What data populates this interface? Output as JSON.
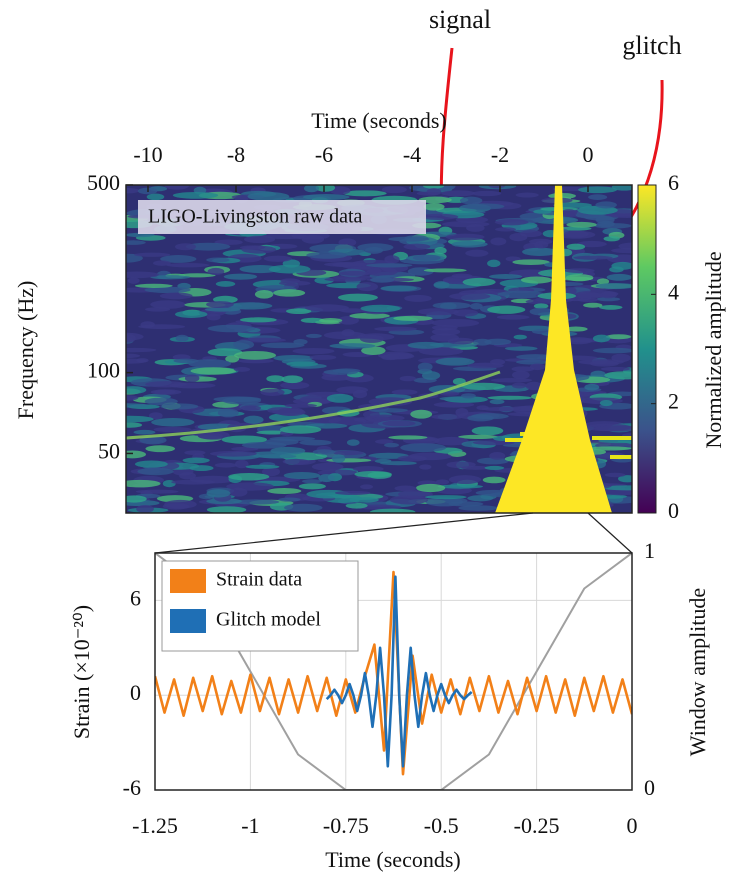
{
  "chart_data": [
    {
      "type": "spectrogram",
      "xlabel": "Time (seconds)",
      "ylabel": "Frequency (Hz)",
      "xlim": [
        -10.5,
        1
      ],
      "xticks": [
        -10,
        -8,
        -6,
        -4,
        -2,
        0
      ],
      "ylim": [
        30,
        500
      ],
      "yticks": [
        50,
        100,
        500
      ],
      "log_y": true,
      "colorbar": {
        "label": "Normalized amplitude",
        "lim": [
          0,
          6
        ],
        "ticks": [
          0,
          2,
          4,
          6
        ]
      },
      "box_text": "LIGO-Livingston raw data",
      "annotations": [
        "signal",
        "glitch"
      ]
    },
    {
      "type": "line",
      "xlabel": "Time (seconds)",
      "ylabel": "Strain (×10⁻²⁰)",
      "y2label": "Window amplitude",
      "xlim": [
        -1.25,
        0
      ],
      "xticks": [
        -1.25,
        -1,
        -0.75,
        -0.5,
        -0.25,
        0
      ],
      "ylim": [
        -6,
        9
      ],
      "yticks": [
        -6,
        0,
        6
      ],
      "y2lim": [
        0,
        1
      ],
      "y2ticks": [
        0,
        1
      ],
      "grid": true,
      "series": [
        {
          "color": "#a0a0a0",
          "axis": "y2",
          "x": [
            -1.25,
            -1.125,
            -1,
            -0.875,
            -0.75,
            -0.5,
            -0.375,
            -0.25,
            -0.125,
            0
          ],
          "values": [
            1,
            0.85,
            0.5,
            0.15,
            0,
            0,
            0.15,
            0.5,
            0.85,
            1
          ]
        },
        {
          "name": "Strain data",
          "color": "#f28018",
          "x": [
            -1.25,
            -1.225,
            -1.2,
            -1.175,
            -1.15,
            -1.125,
            -1.1,
            -1.075,
            -1.05,
            -1.025,
            -1,
            -0.975,
            -0.95,
            -0.925,
            -0.9,
            -0.875,
            -0.85,
            -0.825,
            -0.8,
            -0.775,
            -0.75,
            -0.725,
            -0.7,
            -0.675,
            -0.65,
            -0.625,
            -0.6,
            -0.575,
            -0.55,
            -0.525,
            -0.5,
            -0.475,
            -0.45,
            -0.425,
            -0.4,
            -0.375,
            -0.35,
            -0.325,
            -0.3,
            -0.275,
            -0.25,
            -0.225,
            -0.2,
            -0.175,
            -0.15,
            -0.125,
            -0.1,
            -0.075,
            -0.05,
            -0.025,
            0
          ],
          "values": [
            1.2,
            -1.1,
            1,
            -1.3,
            1.1,
            -1,
            1.2,
            -1.2,
            0.9,
            -1.1,
            1.3,
            -1,
            1.1,
            -1.2,
            1,
            -1.1,
            1.2,
            -1,
            1.1,
            -1.3,
            1,
            -1.1,
            1.2,
            3.2,
            -3.5,
            7.8,
            -5,
            2.5,
            -1.8,
            1.3,
            -1.1,
            1,
            -1.2,
            1.1,
            -1,
            1.2,
            -1.1,
            0.9,
            -1.2,
            1.1,
            -1,
            1.2,
            -1.1,
            1,
            -1.3,
            1.1,
            -1,
            1.2,
            -1.1,
            1,
            -1.2
          ]
        },
        {
          "name": "Glitch model",
          "color": "#1f6fb5",
          "x": [
            -0.8,
            -0.79,
            -0.78,
            -0.77,
            -0.76,
            -0.75,
            -0.74,
            -0.73,
            -0.72,
            -0.71,
            -0.7,
            -0.69,
            -0.68,
            -0.67,
            -0.66,
            -0.65,
            -0.64,
            -0.63,
            -0.62,
            -0.61,
            -0.6,
            -0.59,
            -0.58,
            -0.57,
            -0.56,
            -0.55,
            -0.54,
            -0.53,
            -0.52,
            -0.51,
            -0.5,
            -0.49,
            -0.48,
            -0.47,
            -0.46,
            -0.45,
            -0.44,
            -0.43,
            -0.42
          ],
          "values": [
            -0.25,
            0,
            0.35,
            0,
            -0.5,
            0,
            0.7,
            0,
            -1,
            0,
            1.4,
            0,
            -2,
            0,
            3,
            0,
            -4.5,
            0,
            7.5,
            0,
            -4.5,
            0,
            3,
            0,
            -2,
            0,
            1.4,
            0,
            -1,
            0,
            0.7,
            0,
            -0.5,
            0,
            0.35,
            0,
            -0.25,
            0,
            0.2
          ]
        }
      ]
    }
  ]
}
